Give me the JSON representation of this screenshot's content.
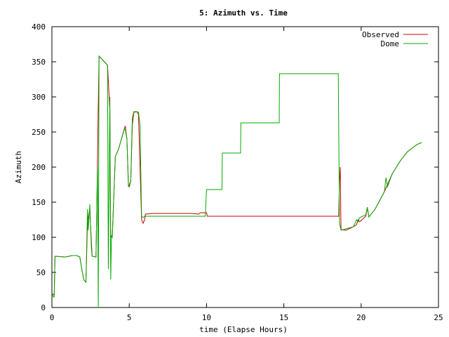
{
  "chart_data": {
    "type": "line",
    "title": "5: Azimuth vs. Time",
    "xlabel": "time (Elapse Hours)",
    "ylabel": "Azimuth",
    "xlim": [
      0,
      25
    ],
    "ylim": [
      0,
      400
    ],
    "xticks": [
      "0",
      "5",
      "10",
      "15",
      "20",
      "25"
    ],
    "yticks": [
      "0",
      "50",
      "100",
      "150",
      "200",
      "250",
      "300",
      "350",
      "400"
    ],
    "grid": false,
    "legend": "top-right",
    "series": [
      {
        "name": "Observed",
        "color": "#cc0000",
        "x": [
          0,
          0.15,
          0.2,
          0.9,
          1.3,
          1.6,
          1.8,
          2.05,
          2.2,
          2.3,
          2.45,
          2.6,
          2.85,
          2.9,
          3.0,
          3.05,
          3.4,
          3.6,
          3.75,
          3.8,
          3.85,
          3.9,
          4.1,
          4.3,
          4.7,
          4.75,
          4.85,
          4.95,
          5.0,
          5.1,
          5.2,
          5.3,
          5.5,
          5.6,
          5.7,
          5.8,
          5.9,
          6.0,
          6.05,
          6.5,
          9.0,
          9.5,
          9.6,
          10.0,
          10.05,
          18.5,
          18.55,
          18.6,
          18.65,
          18.7,
          19.0,
          19.5,
          19.7,
          19.8,
          19.9,
          20.3,
          20.4,
          20.5,
          20.9,
          21.5,
          22.0,
          22.5,
          23.0,
          23.6,
          23.9
        ],
        "y": [
          20,
          18,
          73,
          72,
          74,
          74,
          72,
          40,
          36,
          120,
          140,
          73,
          72,
          135,
          290,
          358,
          350,
          345,
          280,
          100,
          101,
          100,
          215,
          225,
          256,
          258,
          240,
          175,
          172,
          180,
          260,
          278,
          279,
          275,
          200,
          125,
          120,
          125,
          133,
          134,
          134,
          133,
          135,
          135,
          130,
          130,
          130,
          180,
          200,
          111,
          110,
          115,
          118,
          125,
          122,
          130,
          142,
          129,
          140,
          165,
          190,
          208,
          222,
          232,
          235
        ]
      },
      {
        "name": "Dome",
        "color": "#00aa00",
        "x": [
          0,
          0.1,
          0.15,
          0.2,
          0.9,
          1.3,
          1.6,
          1.8,
          2.05,
          2.2,
          2.3,
          2.35,
          2.45,
          2.55,
          2.6,
          2.85,
          2.95,
          3.0,
          3.05,
          3.4,
          3.6,
          3.65,
          3.75,
          3.8,
          3.85,
          3.9,
          4.1,
          4.3,
          4.7,
          4.75,
          4.85,
          4.95,
          5.0,
          5.1,
          5.2,
          5.3,
          5.5,
          5.6,
          5.7,
          5.8,
          5.9,
          6.0,
          6.1,
          9.9,
          9.92,
          10.0,
          11.0,
          11.02,
          12.2,
          12.22,
          14.7,
          14.72,
          18.5,
          18.52,
          18.6,
          18.7,
          19.0,
          19.5,
          19.7,
          19.8,
          19.9,
          20.3,
          20.4,
          20.5,
          20.9,
          21.5,
          21.6,
          21.7,
          22.0,
          22.5,
          23.0,
          23.6,
          23.9
        ],
        "y": [
          20,
          15,
          15,
          73,
          72,
          74,
          74,
          72,
          40,
          36,
          140,
          110,
          147,
          85,
          73,
          72,
          200,
          0,
          358,
          350,
          345,
          55,
          300,
          40,
          102,
          100,
          215,
          225,
          255,
          253,
          240,
          172,
          175,
          180,
          270,
          279,
          279,
          278,
          260,
          130,
          128,
          130,
          130,
          130,
          130,
          168,
          168,
          220,
          220,
          263,
          263,
          333,
          333,
          333,
          120,
          110,
          112,
          115,
          125,
          122,
          128,
          132,
          143,
          129,
          140,
          165,
          185,
          172,
          190,
          208,
          222,
          232,
          235
        ]
      }
    ]
  }
}
